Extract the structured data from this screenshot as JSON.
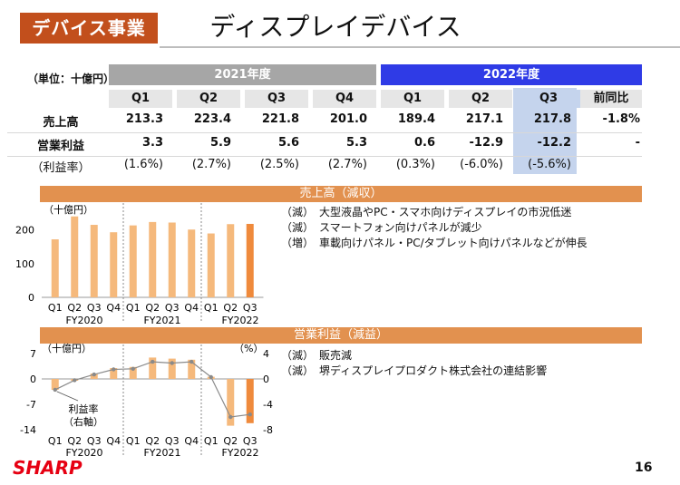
{
  "header": {
    "segment_tag": "デバイス事業",
    "page_title": "ディスプレイデバイス"
  },
  "table": {
    "unit": "（単位：十億円）",
    "year_2021": "2021年度",
    "year_2022": "2022年度",
    "quarters": [
      "Q1",
      "Q2",
      "Q3",
      "Q4",
      "Q1",
      "Q2",
      "Q3"
    ],
    "yoy_label": "前同比",
    "rows": [
      {
        "label": "売上高",
        "values": [
          "213.3",
          "223.4",
          "221.8",
          "201.0",
          "189.4",
          "217.1",
          "217.8"
        ],
        "yoy": "-1.8%"
      },
      {
        "label": "営業利益",
        "values": [
          "3.3",
          "5.9",
          "5.6",
          "5.3",
          "0.6",
          "-12.9",
          "-12.2"
        ],
        "yoy": "-"
      },
      {
        "label": "（利益率）",
        "values": [
          "(1.6%)",
          "(2.7%)",
          "(2.5%)",
          "(2.7%)",
          "(0.3%)",
          "(-6.0%)",
          "(-5.6%)"
        ],
        "yoy": ""
      }
    ],
    "colors": {
      "year_2021": "#a6a6a6",
      "year_2022": "#2f3be6",
      "highlight": "#c5d4ed"
    }
  },
  "sales_section": {
    "header": "売上高（減収）",
    "notes": [
      "（減）　大型液晶やPC・スマホ向けディスプレイの市況低迷",
      "（減）　スマートフォン向けパネルが減少",
      "（増）　車載向けパネル・PC/タブレット向けパネルなどが伸長"
    ]
  },
  "profit_section": {
    "header": "営業利益（減益）",
    "notes": [
      "（減）　販売減",
      "（減）　堺ディスプレイプロダクト株式会社の連結影響"
    ],
    "margin_annotation_1": "利益率",
    "margin_annotation_2": "（右軸）"
  },
  "chart_data": [
    {
      "type": "bar",
      "title": "売上高",
      "ylabel": "（十億円）",
      "ylim": [
        0,
        250
      ],
      "yticks": [
        "0",
        "100",
        "200"
      ],
      "categories": [
        "Q1",
        "Q2",
        "Q3",
        "Q4",
        "Q1",
        "Q2",
        "Q3",
        "Q4",
        "Q1",
        "Q2",
        "Q3"
      ],
      "groups": [
        "FY2020",
        "FY2021",
        "FY2022"
      ],
      "values": [
        172,
        240,
        215,
        193,
        213.3,
        223.4,
        221.8,
        201.0,
        189.4,
        217.1,
        217.8
      ]
    },
    {
      "type": "bar",
      "title": "営業利益",
      "ylabel": "（十億円）",
      "ylabel_right": "（%）",
      "ylim": [
        -14,
        7
      ],
      "ylim_right": [
        -8,
        4
      ],
      "yticks": [
        "7",
        "0",
        "-7",
        "-14"
      ],
      "yticks_right": [
        "4",
        "0",
        "-4",
        "-8"
      ],
      "categories": [
        "Q1",
        "Q2",
        "Q3",
        "Q4",
        "Q1",
        "Q2",
        "Q3",
        "Q4",
        "Q1",
        "Q2",
        "Q3"
      ],
      "groups": [
        "FY2020",
        "FY2021",
        "FY2022"
      ],
      "values": [
        -3.0,
        -0.5,
        1.5,
        3.0,
        3.3,
        5.9,
        5.6,
        5.3,
        0.6,
        -12.9,
        -12.2
      ],
      "series_right": {
        "name": "利益率",
        "values": [
          -1.7,
          -0.2,
          0.7,
          1.5,
          1.6,
          2.7,
          2.5,
          2.7,
          0.3,
          -6.0,
          -5.6
        ]
      }
    }
  ],
  "footer": {
    "logo": "SHARP",
    "page_number": "16"
  }
}
